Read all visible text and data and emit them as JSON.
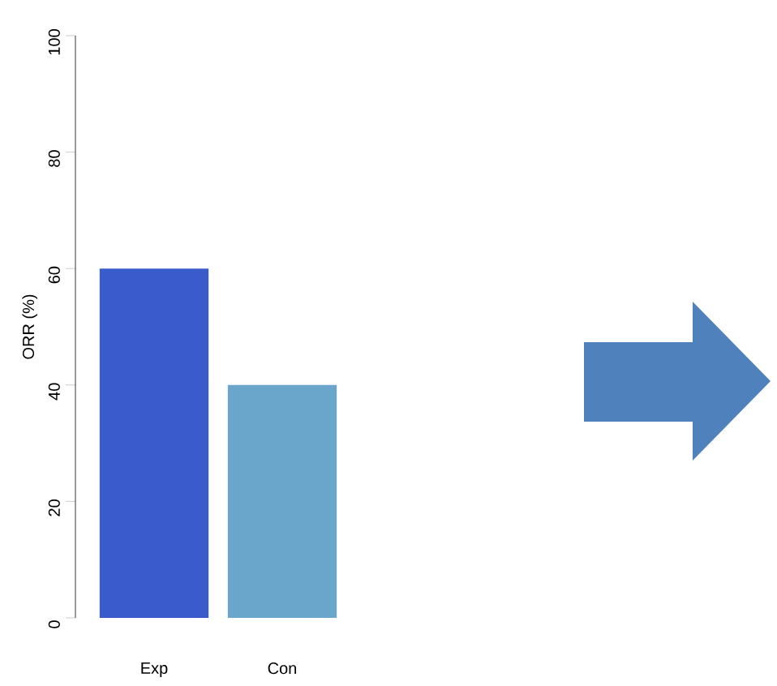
{
  "chart_data": {
    "type": "bar",
    "ylabel": "ORR (%)",
    "categories": [
      "Exp",
      "Con"
    ],
    "values": [
      60,
      40
    ],
    "colors": [
      "#3a5bcc",
      "#6aa5cc"
    ],
    "ylim": [
      0,
      100
    ],
    "yticks": [
      0,
      20,
      40,
      60,
      80,
      100
    ]
  }
}
